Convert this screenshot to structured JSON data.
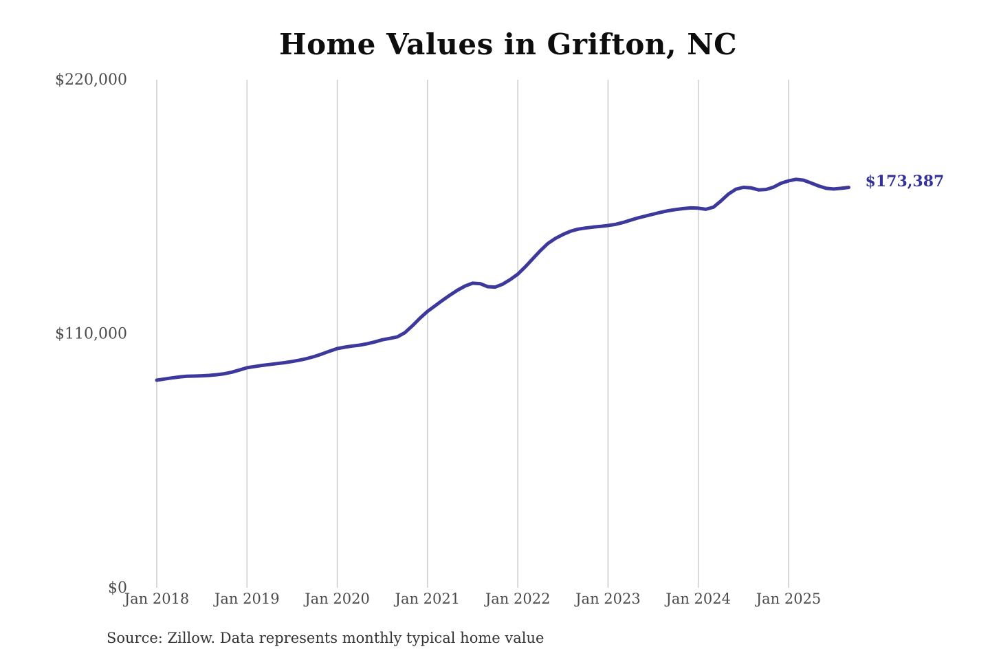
{
  "title": "Home Values in Grifton, NC",
  "source_note": "Source: Zillow. Data represents monthly typical home value",
  "end_label": "$173,387",
  "colors": {
    "line": "#3c389c",
    "end_label": "#32309b",
    "grid": "#cccccc",
    "axis_text": "#4b4b4b",
    "title_text": "#0d0d0d",
    "source_text": "#333333",
    "background": "#ffffff"
  },
  "chart_data": {
    "type": "line",
    "title": "Home Values in Grifton, NC",
    "xlabel": "",
    "ylabel": "",
    "unit": "USD",
    "frequency": "monthly",
    "ylim": [
      0,
      220000
    ],
    "grid": "vertical-only",
    "legend": "none",
    "y_ticks": [
      {
        "label": "$0",
        "value": 0
      },
      {
        "label": "$110,000",
        "value": 110000
      },
      {
        "label": "$220,000",
        "value": 220000
      }
    ],
    "x_ticks": [
      {
        "label": "Jan 2018",
        "month_index": 0
      },
      {
        "label": "Jan 2019",
        "month_index": 12
      },
      {
        "label": "Jan 2020",
        "month_index": 24
      },
      {
        "label": "Jan 2021",
        "month_index": 36
      },
      {
        "label": "Jan 2022",
        "month_index": 48
      },
      {
        "label": "Jan 2023",
        "month_index": 60
      },
      {
        "label": "Jan 2024",
        "month_index": 72
      },
      {
        "label": "Jan 2025",
        "month_index": 84
      }
    ],
    "series": [
      {
        "name": "Typical home value",
        "final_value": 173387,
        "final_value_label": "$173,387",
        "months": [
          "2018-01",
          "2018-02",
          "2018-03",
          "2018-04",
          "2018-05",
          "2018-06",
          "2018-07",
          "2018-08",
          "2018-09",
          "2018-10",
          "2018-11",
          "2018-12",
          "2019-01",
          "2019-02",
          "2019-03",
          "2019-04",
          "2019-05",
          "2019-06",
          "2019-07",
          "2019-08",
          "2019-09",
          "2019-10",
          "2019-11",
          "2019-12",
          "2020-01",
          "2020-02",
          "2020-03",
          "2020-04",
          "2020-05",
          "2020-06",
          "2020-07",
          "2020-08",
          "2020-09",
          "2020-10",
          "2020-11",
          "2020-12",
          "2021-01",
          "2021-02",
          "2021-03",
          "2021-04",
          "2021-05",
          "2021-06",
          "2021-07",
          "2021-08",
          "2021-09",
          "2021-10",
          "2021-11",
          "2021-12",
          "2022-01",
          "2022-02",
          "2022-03",
          "2022-04",
          "2022-05",
          "2022-06",
          "2022-07",
          "2022-08",
          "2022-09",
          "2022-10",
          "2022-11",
          "2022-12",
          "2023-01",
          "2023-02",
          "2023-03",
          "2023-04",
          "2023-05",
          "2023-06",
          "2023-07",
          "2023-08",
          "2023-09",
          "2023-10",
          "2023-11",
          "2023-12",
          "2024-01",
          "2024-02",
          "2024-03",
          "2024-04",
          "2024-05",
          "2024-06",
          "2024-07",
          "2024-08",
          "2024-09",
          "2024-10",
          "2024-11",
          "2024-12",
          "2025-01",
          "2025-02",
          "2025-03",
          "2025-04",
          "2025-05",
          "2025-06",
          "2025-07",
          "2025-08",
          "2025-09"
        ],
        "values": [
          89900,
          90400,
          90900,
          91300,
          91600,
          91700,
          91800,
          92000,
          92300,
          92700,
          93400,
          94300,
          95300,
          95800,
          96300,
          96700,
          97100,
          97500,
          98000,
          98600,
          99300,
          100200,
          101300,
          102500,
          103600,
          104200,
          104700,
          105100,
          105700,
          106500,
          107400,
          108000,
          108700,
          110500,
          113500,
          116800,
          119700,
          122100,
          124500,
          126800,
          128900,
          130700,
          131900,
          131700,
          130400,
          130200,
          131500,
          133500,
          135800,
          139000,
          142500,
          146000,
          149100,
          151300,
          153000,
          154400,
          155300,
          155800,
          156200,
          156500,
          156900,
          157400,
          158200,
          159200,
          160200,
          161000,
          161800,
          162600,
          163300,
          163800,
          164200,
          164500,
          164400,
          163900,
          164800,
          167500,
          170500,
          172600,
          173400,
          173200,
          172300,
          172500,
          173500,
          175200,
          176200,
          176900,
          176500,
          175300,
          174000,
          173000,
          172700,
          173000,
          173387
        ]
      }
    ]
  }
}
